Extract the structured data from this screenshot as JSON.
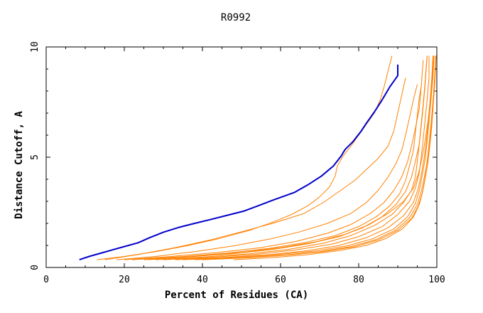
{
  "chart_data": {
    "type": "line",
    "title": "R0992",
    "xlabel": "Percent of Residues (CA)",
    "ylabel": "Distance Cutoff, A",
    "xlim": [
      0,
      100
    ],
    "ylim": [
      0,
      10
    ],
    "x_ticks": [
      "0",
      "20",
      "40",
      "60",
      "80",
      "100"
    ],
    "y_ticks": [
      "0",
      "5",
      "10"
    ],
    "grid": false,
    "legend": "none",
    "colors": {
      "highlight": "#0000cc",
      "other": "#ff8000",
      "axis": "#000000"
    },
    "series": [
      {
        "highlight": true,
        "x": [
          8.5,
          11,
          14,
          17,
          20,
          23.5,
          26.5,
          30,
          34,
          38,
          42,
          46,
          50.5,
          54,
          58,
          63.5,
          67,
          70.5,
          73.5,
          75.5,
          76.5,
          78.5,
          80.5,
          82,
          84,
          86,
          88,
          90,
          90
        ],
        "y": [
          0.35,
          0.5,
          0.65,
          0.8,
          0.95,
          1.12,
          1.35,
          1.6,
          1.82,
          2.0,
          2.17,
          2.35,
          2.55,
          2.78,
          3.05,
          3.4,
          3.75,
          4.15,
          4.6,
          5.05,
          5.35,
          5.7,
          6.15,
          6.55,
          7.05,
          7.6,
          8.2,
          8.7,
          9.2
        ]
      },
      {
        "x": [
          13,
          20,
          28,
          36,
          44,
          52,
          58,
          63,
          67,
          70,
          72.5,
          74,
          74.5,
          76,
          78,
          80,
          82,
          84,
          85.5,
          86.5,
          87.5,
          88.5
        ],
        "y": [
          0.35,
          0.5,
          0.72,
          0.98,
          1.3,
          1.68,
          2.05,
          2.42,
          2.8,
          3.2,
          3.65,
          4.15,
          4.6,
          5.05,
          5.5,
          6.0,
          6.5,
          7.0,
          7.6,
          8.2,
          8.9,
          9.6
        ]
      },
      {
        "x": [
          15,
          24,
          33,
          42,
          50,
          58,
          66,
          71,
          75,
          79,
          82,
          85,
          87.5,
          89,
          90,
          91,
          92
        ],
        "y": [
          0.35,
          0.6,
          0.9,
          1.25,
          1.62,
          2.0,
          2.45,
          2.95,
          3.45,
          3.95,
          4.45,
          4.95,
          5.5,
          6.2,
          7.0,
          7.8,
          8.6
        ]
      },
      {
        "x": [
          18,
          28,
          38,
          48,
          57,
          65,
          72,
          78,
          82,
          85,
          87.5,
          89.5,
          91,
          92,
          93,
          94,
          95
        ],
        "y": [
          0.35,
          0.5,
          0.72,
          0.98,
          1.28,
          1.62,
          2.0,
          2.45,
          2.95,
          3.5,
          4.1,
          4.7,
          5.3,
          6.0,
          6.8,
          7.6,
          8.3
        ]
      },
      {
        "x": [
          20,
          32,
          44,
          55,
          64,
          72,
          78,
          83,
          86.5,
          89,
          91,
          92.5,
          93.5,
          94.5,
          95.5,
          96,
          96.5
        ],
        "y": [
          0.35,
          0.5,
          0.68,
          0.9,
          1.18,
          1.55,
          1.95,
          2.45,
          2.95,
          3.5,
          4.1,
          4.8,
          5.5,
          6.3,
          7.2,
          8.2,
          9.4
        ]
      },
      {
        "x": [
          22,
          34,
          46,
          57,
          66,
          74,
          80,
          84.5,
          88,
          90.5,
          92,
          93,
          94,
          94.5,
          95,
          95.5,
          96
        ],
        "y": [
          0.35,
          0.48,
          0.65,
          0.86,
          1.12,
          1.45,
          1.85,
          2.3,
          2.8,
          3.35,
          3.95,
          4.6,
          5.3,
          6.1,
          6.9,
          7.7,
          8.2
        ]
      },
      {
        "x": [
          25,
          36,
          48,
          58,
          67,
          75,
          81,
          86,
          89.5,
          92,
          93.5,
          94.5,
          95.5,
          96,
          96.5,
          97,
          97.5
        ],
        "y": [
          0.35,
          0.48,
          0.63,
          0.82,
          1.07,
          1.4,
          1.8,
          2.3,
          2.85,
          3.45,
          4.1,
          4.8,
          5.6,
          6.4,
          7.3,
          8.3,
          9.6
        ]
      },
      {
        "x": [
          28,
          40,
          52,
          62,
          71,
          78,
          84,
          88.5,
          91.5,
          93.5,
          94.5,
          95,
          95.5,
          96,
          96.5,
          97,
          97.5
        ],
        "y": [
          0.35,
          0.47,
          0.62,
          0.82,
          1.1,
          1.45,
          1.9,
          2.4,
          2.95,
          3.5,
          4.1,
          4.8,
          5.6,
          6.5,
          7.4,
          8.4,
          9.6
        ]
      },
      {
        "x": [
          30,
          42,
          54,
          64,
          73,
          80,
          86,
          90,
          93,
          94.5,
          95.5,
          96,
          96.5,
          97,
          97.5,
          98,
          98
        ],
        "y": [
          0.35,
          0.46,
          0.6,
          0.8,
          1.05,
          1.4,
          1.85,
          2.4,
          3.0,
          3.6,
          4.3,
          5.0,
          5.8,
          6.7,
          7.6,
          8.6,
          9.6
        ]
      },
      {
        "x": [
          33,
          45,
          57,
          67,
          75,
          82,
          87.5,
          91.5,
          94,
          95.2,
          96,
          96.7,
          97.3,
          97.8,
          98.3,
          98.7,
          99
        ],
        "y": [
          0.35,
          0.45,
          0.58,
          0.76,
          1.0,
          1.35,
          1.8,
          2.35,
          2.95,
          3.55,
          4.2,
          4.9,
          5.7,
          6.6,
          7.6,
          8.6,
          9.6
        ]
      },
      {
        "x": [
          35,
          47,
          59,
          69,
          77,
          83.5,
          89,
          92.5,
          94.5,
          95.5,
          96.3,
          97,
          97.5,
          98,
          98.5,
          99,
          99.3
        ],
        "y": [
          0.35,
          0.45,
          0.58,
          0.75,
          0.98,
          1.3,
          1.75,
          2.3,
          2.9,
          3.5,
          4.2,
          4.9,
          5.7,
          6.6,
          7.6,
          8.6,
          9.6
        ]
      },
      {
        "x": [
          38,
          50,
          61,
          70,
          78,
          84.5,
          89.5,
          93,
          95,
          96,
          96.8,
          97.5,
          98,
          98.5,
          99,
          99.4,
          99.7
        ],
        "y": [
          0.35,
          0.44,
          0.56,
          0.72,
          0.95,
          1.27,
          1.7,
          2.25,
          2.85,
          3.45,
          4.1,
          4.8,
          5.6,
          6.5,
          7.5,
          8.5,
          9.6
        ]
      },
      {
        "x": [
          40,
          52,
          62,
          71,
          79,
          85,
          90,
          93.5,
          95.3,
          96.3,
          97,
          97.7,
          98.2,
          98.7,
          99.1,
          99.5,
          99.8
        ],
        "y": [
          0.35,
          0.44,
          0.56,
          0.72,
          0.94,
          1.25,
          1.68,
          2.22,
          2.8,
          3.4,
          4.05,
          4.75,
          5.5,
          6.4,
          7.4,
          8.4,
          9.6
        ]
      },
      {
        "x": [
          48,
          58,
          67,
          75,
          82,
          87,
          91.2,
          94,
          95.5,
          96.4,
          97.1,
          97.7,
          98.2,
          98.6,
          99,
          99.4,
          99.8
        ],
        "y": [
          0.35,
          0.45,
          0.58,
          0.76,
          1.0,
          1.32,
          1.75,
          2.28,
          2.85,
          3.45,
          4.1,
          4.8,
          5.6,
          6.5,
          7.4,
          8.4,
          9.6
        ]
      },
      {
        "x": [
          26,
          38,
          50,
          60,
          69,
          76.5,
          82.5,
          87.5,
          91.5,
          94,
          95.3,
          96.2,
          97,
          97.7,
          98.3,
          98.8,
          99.2
        ],
        "y": [
          0.35,
          0.5,
          0.68,
          0.9,
          1.16,
          1.5,
          1.93,
          2.45,
          3.0,
          3.6,
          4.25,
          4.95,
          5.75,
          6.6,
          7.5,
          8.5,
          9.6
        ]
      }
    ]
  }
}
